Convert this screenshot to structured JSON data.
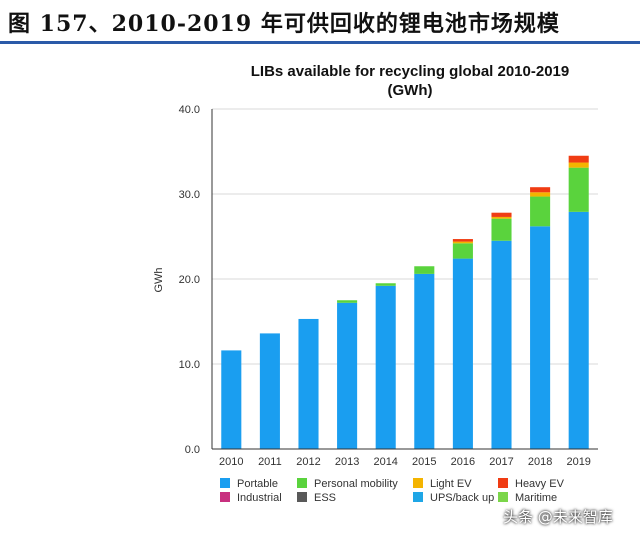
{
  "caption": "图 157、2010-2019 年可供回收的锂电池市场规模",
  "watermark": "头条 @未来智库",
  "colors": {
    "caption_rule": "#2a5aa8",
    "axis": "#333333",
    "grid": "#d9d9d9"
  },
  "chart_data": {
    "type": "bar",
    "stacked": true,
    "title_line1": "LIBs available for recycling global 2010-2019",
    "title_line2": "(GWh)",
    "xlabel": "",
    "ylabel": "GWh",
    "ylim": [
      0,
      40
    ],
    "yticks": [
      "0.0",
      "10.0",
      "20.0",
      "30.0",
      "40.0"
    ],
    "grid": true,
    "legend_position": "bottom",
    "categories": [
      "2010",
      "2011",
      "2012",
      "2013",
      "2014",
      "2015",
      "2016",
      "2017",
      "2018",
      "2019"
    ],
    "series": [
      {
        "name": "Portable",
        "color": "#1a9ef0",
        "values": [
          11.6,
          13.6,
          15.3,
          17.2,
          19.2,
          20.6,
          22.4,
          24.5,
          26.2,
          27.9
        ],
        "legend": true
      },
      {
        "name": "Personal mobility",
        "color": "#5ad33d",
        "values": [
          0,
          0,
          0,
          0.3,
          0.3,
          0.9,
          1.8,
          2.6,
          3.5,
          5.2
        ],
        "legend": true
      },
      {
        "name": "Light EV",
        "color": "#f4b400",
        "values": [
          0,
          0,
          0,
          0,
          0,
          0,
          0.2,
          0.2,
          0.5,
          0.6
        ],
        "legend": true
      },
      {
        "name": "Heavy EV",
        "color": "#f03c13",
        "values": [
          0,
          0,
          0,
          0,
          0,
          0,
          0.3,
          0.5,
          0.6,
          0.8
        ],
        "legend": true
      },
      {
        "name": "Industrial",
        "color": "#c8307f",
        "values": [
          0,
          0,
          0,
          0,
          0,
          0,
          0,
          0,
          0,
          0
        ],
        "legend": true
      },
      {
        "name": "ESS",
        "color": "#595959",
        "values": [
          0,
          0,
          0,
          0,
          0,
          0,
          0,
          0,
          0,
          0
        ],
        "legend": true
      },
      {
        "name": "UPS/back up",
        "color": "#1fa6e6",
        "values": [
          0,
          0,
          0,
          0,
          0,
          0,
          0,
          0,
          0,
          0
        ],
        "legend": true
      },
      {
        "name": "Maritime",
        "color": "#7bd64a",
        "values": [
          0,
          0,
          0,
          0,
          0,
          0,
          0,
          0,
          0,
          0
        ],
        "legend": true
      }
    ]
  }
}
